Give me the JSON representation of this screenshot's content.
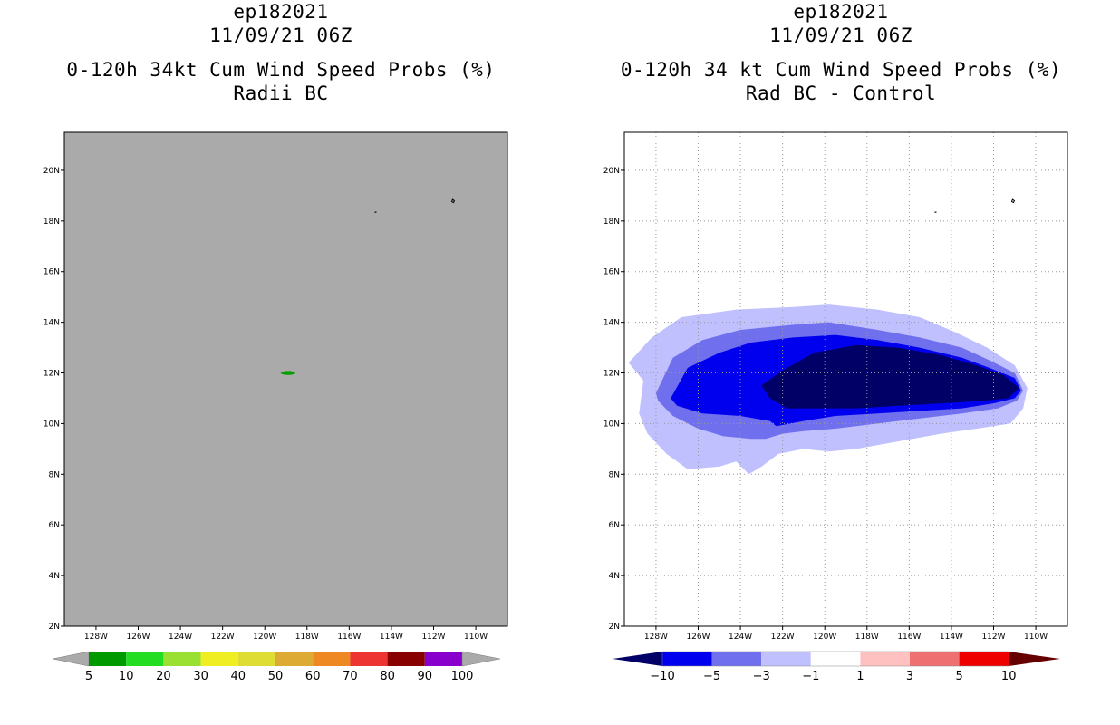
{
  "left_panel": {
    "title_line1": "ep182021",
    "title_line2": "11/09/21 06Z",
    "title_line3": "0-120h 34kt Cum Wind Speed Probs (%)",
    "title_line4": "Radii BC"
  },
  "right_panel": {
    "title_line1": "ep182021",
    "title_line2": "11/09/21 06Z",
    "title_line3": "0-120h 34 kt Cum Wind Speed Probs (%)",
    "title_line4": "Rad BC - Control"
  },
  "chart_data": [
    {
      "type": "heatmap",
      "title": "0-120h 34kt Cum Wind Speed Probs (%) Radii BC",
      "x_ticks": [
        "128W",
        "126W",
        "124W",
        "122W",
        "120W",
        "118W",
        "116W",
        "114W",
        "112W",
        "110W"
      ],
      "y_ticks": [
        "2N",
        "4N",
        "6N",
        "8N",
        "10N",
        "12N",
        "14N",
        "16N",
        "18N",
        "20N"
      ],
      "xlim": [
        -129.5,
        -108.5
      ],
      "ylim": [
        2,
        21.5
      ],
      "background_color": "#aaaaaa",
      "features": [
        {
          "name": "probability-blob",
          "lon": -118.9,
          "lat": 12.0,
          "value_range": "5-10",
          "color": "#00a000"
        }
      ],
      "colorbar": {
        "labels": [
          "5",
          "10",
          "20",
          "30",
          "40",
          "50",
          "60",
          "70",
          "80",
          "90",
          "100"
        ],
        "colors": [
          "#009900",
          "#22dd22",
          "#99e033",
          "#eeee22",
          "#dddd33",
          "#ddaa33",
          "#ee8822",
          "#ee3333",
          "#880000",
          "#8800cc"
        ]
      }
    },
    {
      "type": "heatmap",
      "title": "0-120h 34 kt Cum Wind Speed Probs (%) Rad BC - Control",
      "x_ticks": [
        "128W",
        "126W",
        "124W",
        "122W",
        "120W",
        "118W",
        "116W",
        "114W",
        "112W",
        "110W"
      ],
      "y_ticks": [
        "2N",
        "4N",
        "6N",
        "8N",
        "10N",
        "12N",
        "14N",
        "16N",
        "18N",
        "20N"
      ],
      "xlim": [
        -129.5,
        -108.5
      ],
      "ylim": [
        2,
        21.5
      ],
      "grid": true,
      "contours": [
        {
          "range": "-3 to -1",
          "color": "#c0c0ff",
          "lon": [
            -129.3,
            -128.2,
            -126.8,
            -124.2,
            -121.5,
            -119.8,
            -117.5,
            -115.5,
            -113.8,
            -112.3,
            -111.0,
            -110.4,
            -110.6,
            -111.2,
            -112.8,
            -114.5,
            -116.5,
            -118.5,
            -119.8,
            -121.0,
            -122.2,
            -123.0,
            -123.6,
            -124.2,
            -125.0,
            -126.5,
            -127.5,
            -128.4,
            -128.8,
            -128.6,
            -129.3
          ],
          "lat": [
            12.4,
            13.4,
            14.2,
            14.5,
            14.6,
            14.7,
            14.5,
            14.2,
            13.6,
            13.0,
            12.3,
            11.4,
            10.6,
            10.0,
            9.8,
            9.6,
            9.3,
            9.0,
            8.9,
            9.0,
            8.8,
            8.3,
            8.0,
            8.5,
            8.3,
            8.2,
            8.8,
            9.6,
            10.4,
            11.7,
            12.4
          ]
        },
        {
          "range": "-5 to -3",
          "color": "#7070ee",
          "lon": [
            -128.0,
            -127.2,
            -125.8,
            -124.0,
            -121.5,
            -119.8,
            -117.5,
            -115.5,
            -113.5,
            -112.2,
            -111.0,
            -110.6,
            -110.9,
            -111.8,
            -113.5,
            -115.5,
            -117.5,
            -119.5,
            -121.0,
            -122.0,
            -122.8,
            -123.5,
            -124.8,
            -126.0,
            -127.2,
            -127.9,
            -128.0
          ],
          "lat": [
            11.2,
            12.6,
            13.3,
            13.7,
            13.9,
            14.0,
            13.7,
            13.4,
            13.0,
            12.5,
            12.0,
            11.3,
            10.9,
            10.6,
            10.4,
            10.2,
            10.0,
            9.8,
            9.7,
            9.6,
            9.4,
            9.4,
            9.5,
            9.8,
            10.3,
            10.9,
            11.2
          ]
        },
        {
          "range": "-10 to -5",
          "color": "#0000ee",
          "lon": [
            -127.3,
            -126.5,
            -125.0,
            -123.5,
            -121.5,
            -119.5,
            -117.5,
            -115.5,
            -113.5,
            -112.2,
            -111.0,
            -110.7,
            -111.0,
            -112.0,
            -113.5,
            -115.5,
            -117.5,
            -119.5,
            -121.0,
            -122.3,
            -122.6,
            -124.0,
            -125.8,
            -127.0,
            -127.3
          ],
          "lat": [
            11.0,
            12.2,
            12.8,
            13.2,
            13.4,
            13.5,
            13.3,
            13.0,
            12.6,
            12.2,
            11.8,
            11.3,
            11.0,
            10.8,
            10.6,
            10.5,
            10.4,
            10.3,
            10.1,
            9.9,
            10.1,
            10.3,
            10.4,
            10.7,
            11.0
          ]
        },
        {
          "range": "< -10",
          "color": "#000066",
          "lon": [
            -123.0,
            -122.0,
            -120.5,
            -118.5,
            -116.5,
            -114.5,
            -112.8,
            -111.5,
            -110.8,
            -111.3,
            -112.5,
            -114.5,
            -116.5,
            -118.5,
            -120.5,
            -121.8,
            -122.6,
            -123.0
          ],
          "lat": [
            11.5,
            12.1,
            12.8,
            13.1,
            13.0,
            12.7,
            12.3,
            11.9,
            11.4,
            11.0,
            10.9,
            10.8,
            10.7,
            10.6,
            10.6,
            10.6,
            11.0,
            11.5
          ]
        }
      ],
      "colorbar": {
        "labels": [
          "-10",
          "-5",
          "-3",
          "-1",
          "1",
          "3",
          "5",
          "10"
        ],
        "colors": [
          "#000066",
          "#0000ee",
          "#7070ee",
          "#c0c0ff",
          "#ffffff",
          "#ffc0c0",
          "#ee7070",
          "#ee0000",
          "#660000"
        ]
      }
    }
  ]
}
